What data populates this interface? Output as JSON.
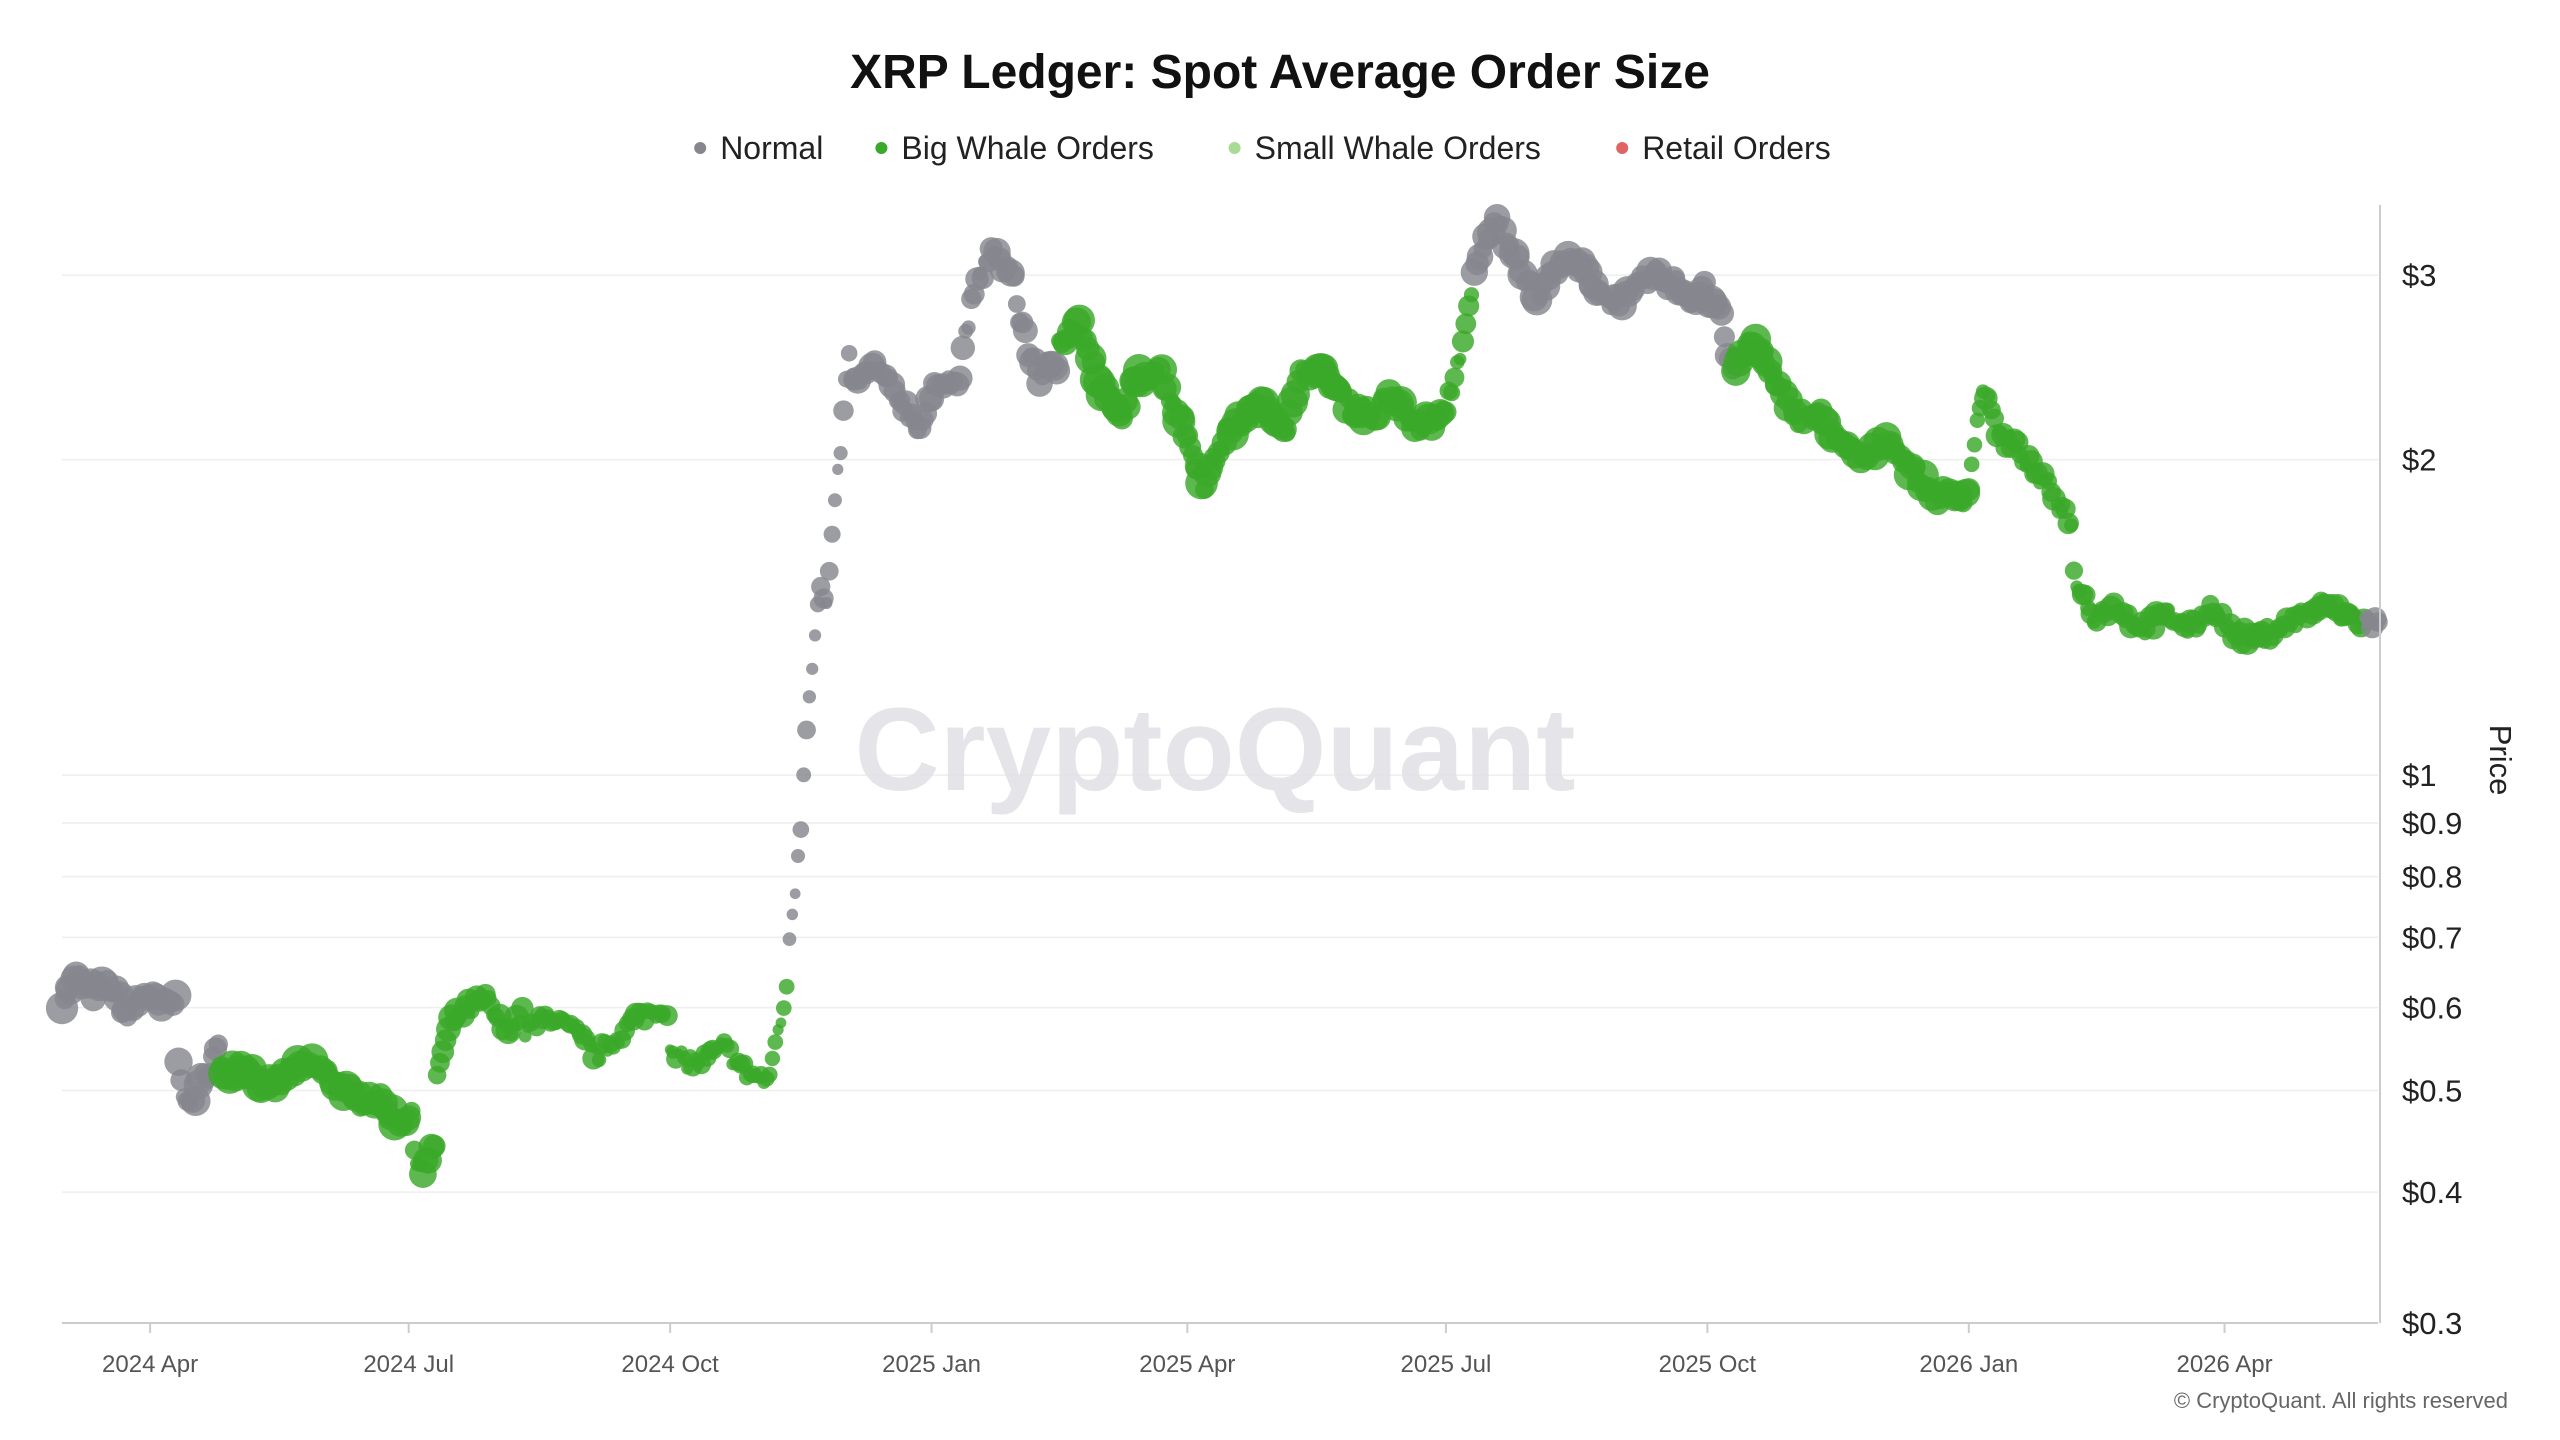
{
  "chart_data": {
    "type": "scatter",
    "title": "XRP Ledger: Spot Average Order Size",
    "ylabel": "Price",
    "y_scale": "log",
    "ylim": [
      0.3,
      3.5
    ],
    "xlim": [
      "2024-03-01",
      "2026-05-25"
    ],
    "grid": true,
    "legend_position": "top-center",
    "watermark": "CryptoQuant",
    "copyright": "© CryptoQuant. All rights reserved",
    "x_ticks": [
      {
        "date": "2024-04-01",
        "label": "2024 Apr"
      },
      {
        "date": "2024-07-01",
        "label": "2024 Jul"
      },
      {
        "date": "2024-10-01",
        "label": "2024 Oct"
      },
      {
        "date": "2025-01-01",
        "label": "2025 Jan"
      },
      {
        "date": "2025-04-01",
        "label": "2025 Apr"
      },
      {
        "date": "2025-07-01",
        "label": "2025 Jul"
      },
      {
        "date": "2025-10-01",
        "label": "2025 Oct"
      },
      {
        "date": "2026-01-01",
        "label": "2026 Jan"
      },
      {
        "date": "2026-04-01",
        "label": "2026 Apr"
      }
    ],
    "y_ticks": [
      {
        "value": 3,
        "label": "$3"
      },
      {
        "value": 2,
        "label": "$2"
      },
      {
        "value": 1,
        "label": "$1"
      },
      {
        "value": 0.9,
        "label": "$0.9"
      },
      {
        "value": 0.8,
        "label": "$0.8"
      },
      {
        "value": 0.7,
        "label": "$0.7"
      },
      {
        "value": 0.6,
        "label": "$0.6"
      },
      {
        "value": 0.5,
        "label": "$0.5"
      },
      {
        "value": 0.4,
        "label": "$0.4"
      },
      {
        "value": 0.3,
        "label": "$0.3"
      }
    ],
    "series": [
      {
        "name": "Normal",
        "color": "#86868f"
      },
      {
        "name": "Big Whale Orders",
        "color": "#3aa82a"
      },
      {
        "name": "Small Whale Orders",
        "color": "#a6dc93"
      },
      {
        "name": "Retail Orders",
        "color": "#e06464"
      }
    ],
    "segments": [
      {
        "start": "2024-03-01",
        "end": "2024-04-10",
        "series": 0,
        "size": 1.4,
        "path": [
          [
            "2024-03-01",
            0.61
          ],
          [
            "2024-03-06",
            0.64
          ],
          [
            "2024-03-12",
            0.62
          ],
          [
            "2024-03-18",
            0.63
          ],
          [
            "2024-03-24",
            0.59
          ],
          [
            "2024-03-30",
            0.62
          ],
          [
            "2024-04-05",
            0.6
          ],
          [
            "2024-04-10",
            0.61
          ]
        ]
      },
      {
        "start": "2024-04-11",
        "end": "2024-04-25",
        "series": 0,
        "size": 1.3,
        "path": [
          [
            "2024-04-11",
            0.54
          ],
          [
            "2024-04-14",
            0.48
          ],
          [
            "2024-04-18",
            0.5
          ],
          [
            "2024-04-22",
            0.53
          ],
          [
            "2024-04-25",
            0.55
          ]
        ]
      },
      {
        "start": "2024-04-26",
        "end": "2024-07-02",
        "series": 1,
        "size": 1.4,
        "path": [
          [
            "2024-04-26",
            0.52
          ],
          [
            "2024-05-05",
            0.53
          ],
          [
            "2024-05-12",
            0.5
          ],
          [
            "2024-05-20",
            0.52
          ],
          [
            "2024-05-28",
            0.53
          ],
          [
            "2024-06-05",
            0.51
          ],
          [
            "2024-06-12",
            0.49
          ],
          [
            "2024-06-20",
            0.49
          ],
          [
            "2024-06-26",
            0.47
          ],
          [
            "2024-07-02",
            0.47
          ]
        ]
      },
      {
        "start": "2024-07-03",
        "end": "2024-07-10",
        "series": 1,
        "size": 1.2,
        "path": [
          [
            "2024-07-03",
            0.44
          ],
          [
            "2024-07-06",
            0.42
          ],
          [
            "2024-07-10",
            0.44
          ]
        ]
      },
      {
        "start": "2024-07-11",
        "end": "2024-08-10",
        "series": 1,
        "size": 1.1,
        "path": [
          [
            "2024-07-11",
            0.52
          ],
          [
            "2024-07-16",
            0.58
          ],
          [
            "2024-07-22",
            0.6
          ],
          [
            "2024-07-28",
            0.61
          ],
          [
            "2024-08-04",
            0.57
          ],
          [
            "2024-08-10",
            0.59
          ]
        ]
      },
      {
        "start": "2024-08-11",
        "end": "2024-09-30",
        "series": 1,
        "size": 0.95,
        "path": [
          [
            "2024-08-11",
            0.57
          ],
          [
            "2024-08-20",
            0.59
          ],
          [
            "2024-08-28",
            0.57
          ],
          [
            "2024-09-05",
            0.54
          ],
          [
            "2024-09-12",
            0.56
          ],
          [
            "2024-09-20",
            0.59
          ],
          [
            "2024-09-30",
            0.6
          ]
        ]
      },
      {
        "start": "2024-10-01",
        "end": "2024-11-05",
        "series": 1,
        "size": 0.85,
        "path": [
          [
            "2024-10-01",
            0.54
          ],
          [
            "2024-10-10",
            0.53
          ],
          [
            "2024-10-20",
            0.55
          ],
          [
            "2024-10-28",
            0.52
          ],
          [
            "2024-11-05",
            0.51
          ]
        ]
      },
      {
        "start": "2024-11-06",
        "end": "2024-11-11",
        "series": 1,
        "size": 0.8,
        "path": [
          [
            "2024-11-06",
            0.54
          ],
          [
            "2024-11-08",
            0.57
          ],
          [
            "2024-11-11",
            0.62
          ]
        ]
      },
      {
        "start": "2024-11-12",
        "end": "2024-11-22",
        "series": 0,
        "size": 0.85,
        "path": [
          [
            "2024-11-12",
            0.7
          ],
          [
            "2024-11-14",
            0.78
          ],
          [
            "2024-11-16",
            0.9
          ],
          [
            "2024-11-18",
            1.12
          ],
          [
            "2024-11-20",
            1.28
          ],
          [
            "2024-11-22",
            1.45
          ]
        ]
      },
      {
        "start": "2024-11-23",
        "end": "2024-12-03",
        "series": 0,
        "size": 0.9,
        "path": [
          [
            "2024-11-23",
            1.5
          ],
          [
            "2024-11-25",
            1.45
          ],
          [
            "2024-11-28",
            1.8
          ],
          [
            "2024-12-01",
            2.2
          ],
          [
            "2024-12-03",
            2.55
          ]
        ]
      },
      {
        "start": "2024-12-04",
        "end": "2025-01-30",
        "series": 0,
        "size": 1.15,
        "path": [
          [
            "2024-12-04",
            2.35
          ],
          [
            "2024-12-12",
            2.45
          ],
          [
            "2024-12-20",
            2.3
          ],
          [
            "2024-12-28",
            2.15
          ],
          [
            "2025-01-04",
            2.4
          ],
          [
            "2025-01-10",
            2.35
          ],
          [
            "2025-01-16",
            2.9
          ],
          [
            "2025-01-22",
            3.15
          ],
          [
            "2025-01-30",
            3.0
          ]
        ]
      },
      {
        "start": "2025-01-31",
        "end": "2025-02-14",
        "series": 0,
        "size": 1.35,
        "path": [
          [
            "2025-01-31",
            2.8
          ],
          [
            "2025-02-04",
            2.55
          ],
          [
            "2025-02-08",
            2.4
          ],
          [
            "2025-02-14",
            2.45
          ]
        ]
      },
      {
        "start": "2025-02-15",
        "end": "2025-06-30",
        "series": 1,
        "size": 1.4,
        "path": [
          [
            "2025-02-15",
            2.6
          ],
          [
            "2025-02-22",
            2.7
          ],
          [
            "2025-03-01",
            2.35
          ],
          [
            "2025-03-08",
            2.2
          ],
          [
            "2025-03-15",
            2.4
          ],
          [
            "2025-03-22",
            2.45
          ],
          [
            "2025-03-29",
            2.2
          ],
          [
            "2025-04-07",
            1.9
          ],
          [
            "2025-04-14",
            2.1
          ],
          [
            "2025-04-21",
            2.2
          ],
          [
            "2025-04-28",
            2.25
          ],
          [
            "2025-05-06",
            2.15
          ],
          [
            "2025-05-12",
            2.45
          ],
          [
            "2025-05-20",
            2.4
          ],
          [
            "2025-05-28",
            2.25
          ],
          [
            "2025-06-05",
            2.2
          ],
          [
            "2025-06-12",
            2.3
          ],
          [
            "2025-06-20",
            2.15
          ],
          [
            "2025-06-30",
            2.2
          ]
        ]
      },
      {
        "start": "2025-07-01",
        "end": "2025-07-10",
        "series": 1,
        "size": 0.95,
        "path": [
          [
            "2025-07-01",
            2.25
          ],
          [
            "2025-07-04",
            2.4
          ],
          [
            "2025-07-07",
            2.6
          ],
          [
            "2025-07-10",
            2.85
          ]
        ]
      },
      {
        "start": "2025-07-11",
        "end": "2025-09-30",
        "series": 0,
        "size": 1.3,
        "path": [
          [
            "2025-07-11",
            3.0
          ],
          [
            "2025-07-18",
            3.4
          ],
          [
            "2025-07-25",
            3.15
          ],
          [
            "2025-08-02",
            2.85
          ],
          [
            "2025-08-10",
            3.1
          ],
          [
            "2025-08-18",
            3.05
          ],
          [
            "2025-08-26",
            2.85
          ],
          [
            "2025-09-03",
            2.85
          ],
          [
            "2025-09-11",
            3.0
          ],
          [
            "2025-09-19",
            2.95
          ],
          [
            "2025-09-26",
            2.85
          ],
          [
            "2025-09-30",
            2.95
          ]
        ]
      },
      {
        "start": "2025-10-01",
        "end": "2025-10-10",
        "series": 0,
        "size": 1.45,
        "path": [
          [
            "2025-10-01",
            2.85
          ],
          [
            "2025-10-05",
            2.8
          ],
          [
            "2025-10-08",
            2.55
          ],
          [
            "2025-10-10",
            2.4
          ]
        ]
      },
      {
        "start": "2025-10-11",
        "end": "2025-12-31",
        "series": 1,
        "size": 1.3,
        "path": [
          [
            "2025-10-11",
            2.45
          ],
          [
            "2025-10-18",
            2.6
          ],
          [
            "2025-10-25",
            2.35
          ],
          [
            "2025-11-02",
            2.2
          ],
          [
            "2025-11-10",
            2.2
          ],
          [
            "2025-11-18",
            2.05
          ],
          [
            "2025-11-26",
            2.0
          ],
          [
            "2025-12-04",
            2.1
          ],
          [
            "2025-12-12",
            1.95
          ],
          [
            "2025-12-20",
            1.85
          ],
          [
            "2025-12-31",
            1.85
          ]
        ]
      },
      {
        "start": "2026-01-01",
        "end": "2026-02-06",
        "series": 1,
        "size": 1.0,
        "path": [
          [
            "2026-01-01",
            1.9
          ],
          [
            "2026-01-06",
            2.35
          ],
          [
            "2026-01-12",
            2.1
          ],
          [
            "2026-01-18",
            2.05
          ],
          [
            "2026-01-24",
            1.95
          ],
          [
            "2026-01-31",
            1.85
          ],
          [
            "2026-02-06",
            1.75
          ]
        ]
      },
      {
        "start": "2026-02-07",
        "end": "2026-05-20",
        "series": 1,
        "size": 1.05,
        "path": [
          [
            "2026-02-07",
            1.55
          ],
          [
            "2026-02-14",
            1.42
          ],
          [
            "2026-02-22",
            1.45
          ],
          [
            "2026-03-02",
            1.38
          ],
          [
            "2026-03-12",
            1.42
          ],
          [
            "2026-03-20",
            1.38
          ],
          [
            "2026-03-28",
            1.45
          ],
          [
            "2026-04-04",
            1.36
          ],
          [
            "2026-04-12",
            1.35
          ],
          [
            "2026-04-20",
            1.38
          ],
          [
            "2026-04-28",
            1.42
          ],
          [
            "2026-05-06",
            1.45
          ],
          [
            "2026-05-14",
            1.42
          ],
          [
            "2026-05-20",
            1.4
          ]
        ]
      },
      {
        "start": "2026-05-21",
        "end": "2026-05-25",
        "series": 0,
        "size": 1.0,
        "path": [
          [
            "2026-05-21",
            1.4
          ],
          [
            "2026-05-25",
            1.4
          ]
        ]
      }
    ]
  }
}
